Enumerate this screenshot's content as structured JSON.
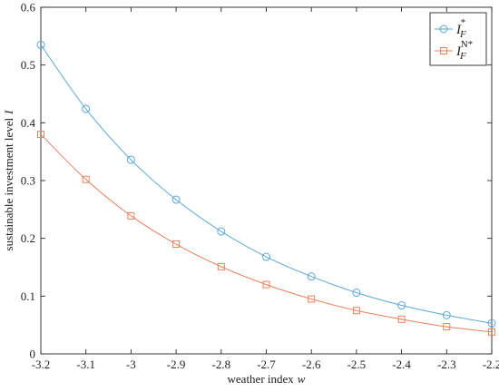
{
  "chart_data": {
    "type": "line",
    "xlabel": "weather index",
    "xlabel_var": "w",
    "ylabel": "sustainable investment level",
    "ylabel_var": "I",
    "xlim": [
      -3.2,
      -2.2
    ],
    "ylim": [
      0,
      0.6
    ],
    "xticks": [
      "-3.2",
      "-3.1",
      "-3",
      "-2.9",
      "-2.8",
      "-2.7",
      "-2.6",
      "-2.5",
      "-2.4",
      "-2.3",
      "-2.2"
    ],
    "yticks": [
      "0",
      "0.1",
      "0.2",
      "0.3",
      "0.4",
      "0.5",
      "0.6"
    ],
    "grid": false,
    "legend_position": "top-right",
    "x": [
      -3.2,
      -3.1,
      -3.0,
      -2.9,
      -2.8,
      -2.7,
      -2.6,
      -2.5,
      -2.4,
      -2.3,
      -2.2
    ],
    "series": [
      {
        "legend_base": "I",
        "legend_sub": "F",
        "legend_sup": "*",
        "color": "#5aa7d9",
        "marker": "circle",
        "values": [
          0.535,
          0.424,
          0.336,
          0.267,
          0.212,
          0.168,
          0.134,
          0.106,
          0.084,
          0.067,
          0.053
        ]
      },
      {
        "legend_base": "I",
        "legend_sub": "F",
        "legend_sup": "N*",
        "color": "#e8825e",
        "marker": "square",
        "values": [
          0.38,
          0.302,
          0.239,
          0.19,
          0.151,
          0.12,
          0.095,
          0.075,
          0.06,
          0.047,
          0.038
        ]
      }
    ]
  }
}
